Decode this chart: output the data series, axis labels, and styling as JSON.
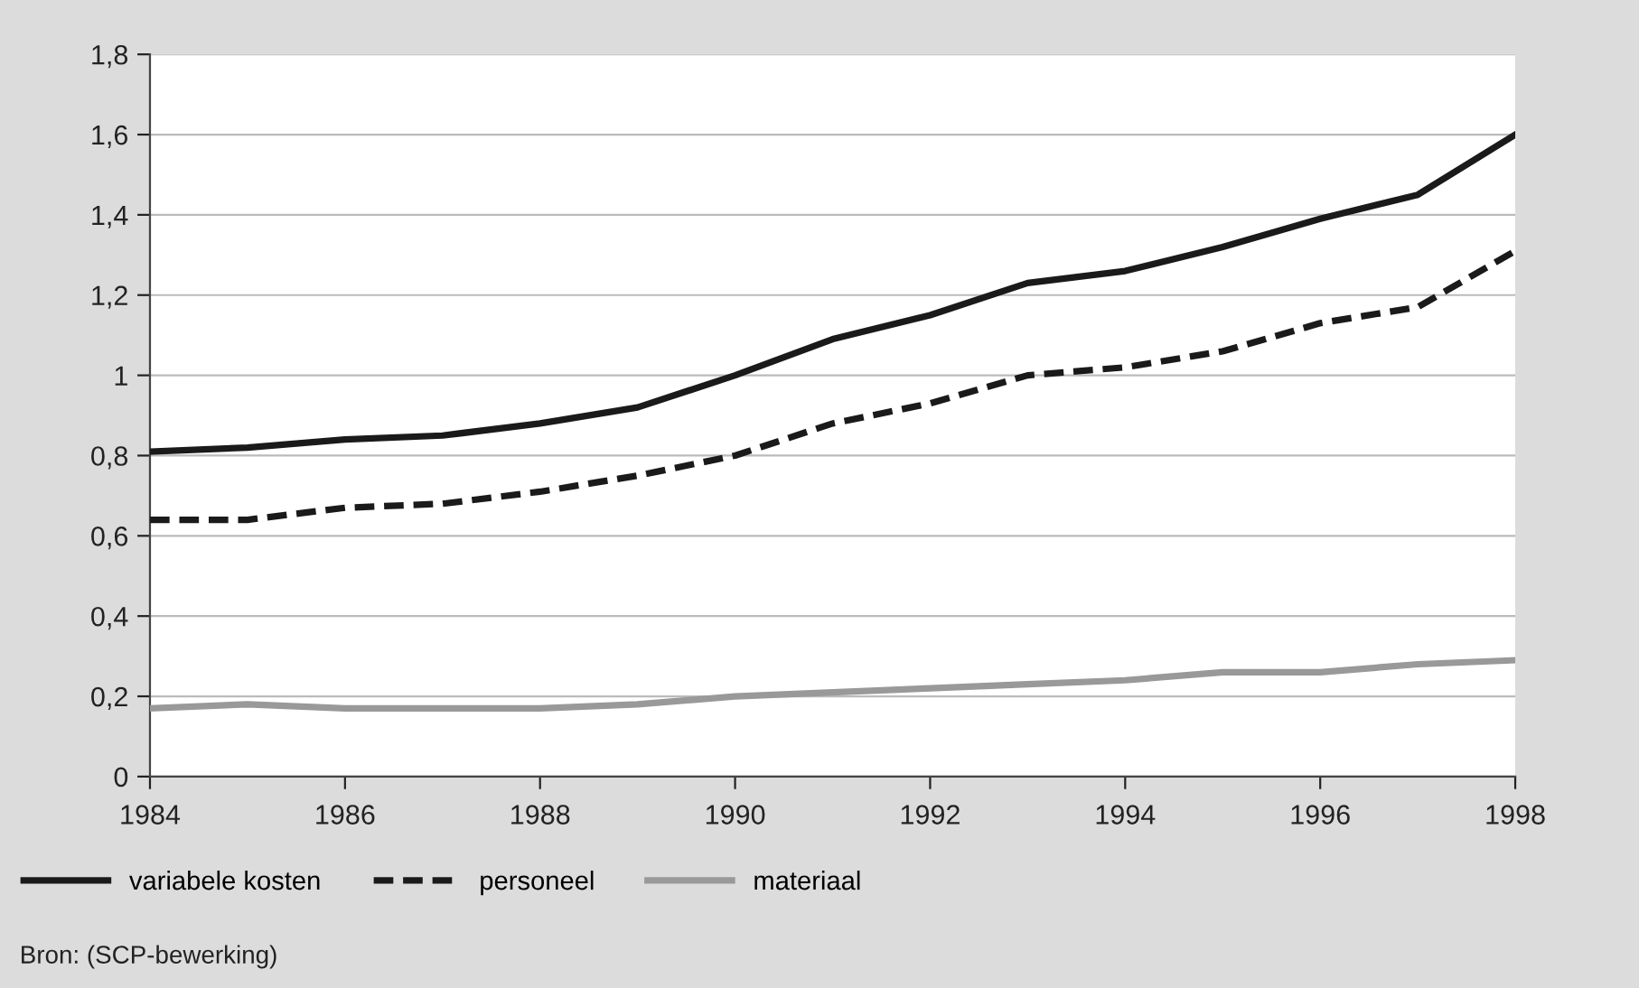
{
  "chart_data": {
    "type": "line",
    "x": [
      1984,
      1985,
      1986,
      1987,
      1988,
      1989,
      1990,
      1991,
      1992,
      1993,
      1994,
      1995,
      1996,
      1997,
      1998
    ],
    "series": [
      {
        "name": "variabele kosten",
        "color": "#1a1a1a",
        "line_style": "solid",
        "values": [
          0.81,
          0.82,
          0.84,
          0.85,
          0.88,
          0.92,
          1.0,
          1.09,
          1.15,
          1.23,
          1.26,
          1.32,
          1.39,
          1.45,
          1.6
        ]
      },
      {
        "name": "personeel",
        "color": "#1a1a1a",
        "line_style": "dashed",
        "values": [
          0.64,
          0.64,
          0.67,
          0.68,
          0.71,
          0.75,
          0.8,
          0.88,
          0.93,
          1.0,
          1.02,
          1.06,
          1.13,
          1.17,
          1.31
        ]
      },
      {
        "name": "materiaal",
        "color": "#999999",
        "line_style": "solid",
        "values": [
          0.17,
          0.18,
          0.17,
          0.17,
          0.17,
          0.18,
          0.2,
          0.21,
          0.22,
          0.23,
          0.24,
          0.26,
          0.26,
          0.28,
          0.29
        ]
      }
    ],
    "xlim": [
      1984,
      1998
    ],
    "xticks": [
      1984,
      1986,
      1988,
      1990,
      1992,
      1994,
      1996,
      1998
    ],
    "ylim": [
      0,
      1.8
    ],
    "yticks": [
      0,
      {
        "value": 0.2,
        "label": "0,2"
      },
      {
        "value": 0.4,
        "label": "0,4"
      },
      {
        "value": 0.6,
        "label": "0,6"
      },
      {
        "value": 0.8,
        "label": "0,8"
      },
      1,
      {
        "value": 1.2,
        "label": "1,2"
      },
      {
        "value": 1.4,
        "label": "1,4"
      },
      {
        "value": 1.6,
        "label": "1,6"
      },
      {
        "value": 1.8,
        "label": "1,8"
      }
    ],
    "grid": "y",
    "legend": "bottom",
    "marker": "none",
    "annotations": [
      "Bron: (SCP-bewerking)"
    ]
  }
}
